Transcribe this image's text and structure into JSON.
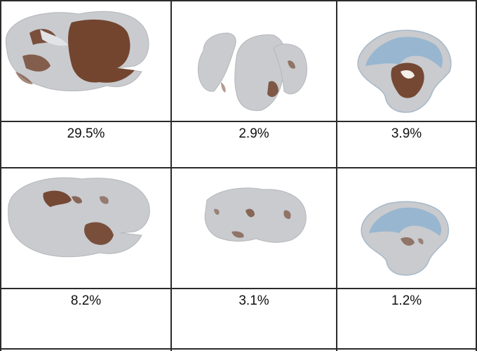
{
  "grid": {
    "rows": [
      {
        "images": [
          {
            "name": "brain-section-forebrain-extensive-stain",
            "stain_level": "extensive"
          },
          {
            "name": "brain-section-split-midbrain-light-stain",
            "stain_level": "light"
          },
          {
            "name": "brain-section-cerebellum-moderate-stain",
            "stain_level": "moderate"
          }
        ],
        "percentages": [
          "29.5%",
          "2.9%",
          "3.9%"
        ]
      },
      {
        "images": [
          {
            "name": "brain-section-forebrain-patchy-stain",
            "stain_level": "patchy"
          },
          {
            "name": "brain-section-midbrain-light-stain",
            "stain_level": "light"
          },
          {
            "name": "brain-section-cerebellum-light-stain",
            "stain_level": "light"
          }
        ],
        "percentages": [
          "8.2%",
          "3.1%",
          "1.2%"
        ]
      }
    ]
  },
  "colors": {
    "tissue": "#c9cbcf",
    "stain": "#6b3a22",
    "blue_stain": "#8fb3cf",
    "border": "#2a2a2a"
  }
}
